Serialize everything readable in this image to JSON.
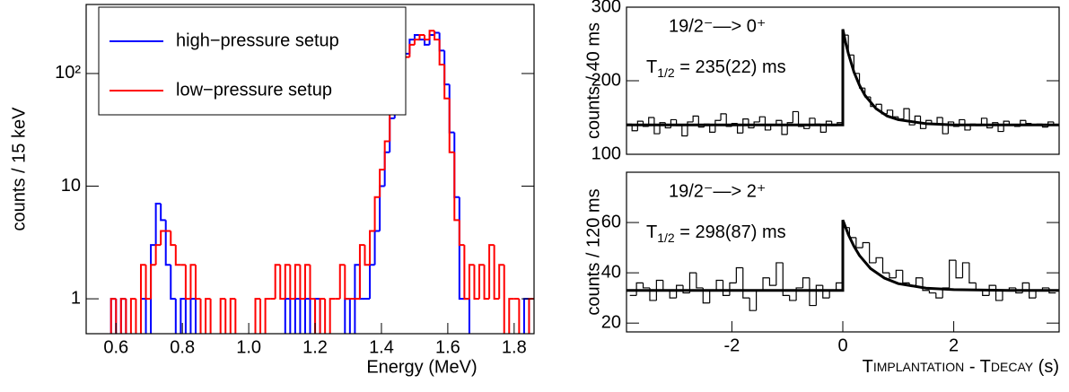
{
  "chart_data": [
    {
      "type": "histogram",
      "xlabel": "Energy (MeV)",
      "ylabel": "counts / 15 keV",
      "log_y": true,
      "xlim": [
        0.51,
        1.86
      ],
      "ylim": [
        0.49,
        410
      ],
      "xticks": [
        0.6,
        0.8,
        {
          "value": 1.0,
          "label": "1.0"
        },
        1.2,
        1.4,
        1.6,
        1.8
      ],
      "yticks": [
        1,
        10,
        {
          "value": 100,
          "label": "10²"
        }
      ],
      "legend": "top-left",
      "bins": [
        0.57,
        0.585,
        0.6,
        0.615,
        0.63,
        0.645,
        0.66,
        0.675,
        0.69,
        0.705,
        0.72,
        0.735,
        0.75,
        0.765,
        0.78,
        0.795,
        0.81,
        0.825,
        0.84,
        0.855,
        0.87,
        0.885,
        0.9,
        0.915,
        0.93,
        0.945,
        0.96,
        0.975,
        0.99,
        1.005,
        1.02,
        1.035,
        1.05,
        1.065,
        1.08,
        1.095,
        1.11,
        1.125,
        1.14,
        1.155,
        1.17,
        1.185,
        1.2,
        1.215,
        1.23,
        1.245,
        1.26,
        1.275,
        1.29,
        1.305,
        1.32,
        1.335,
        1.35,
        1.365,
        1.38,
        1.395,
        1.41,
        1.425,
        1.44,
        1.455,
        1.47,
        1.485,
        1.5,
        1.515,
        1.53,
        1.545,
        1.56,
        1.575,
        1.59,
        1.605,
        1.62,
        1.635,
        1.65,
        1.665,
        1.68,
        1.695,
        1.71,
        1.725,
        1.74,
        1.755,
        1.77,
        1.785,
        1.8,
        1.815,
        1.83,
        1.845,
        1.86
      ],
      "series": [
        {
          "name": "high−pressure setup",
          "color": "#0000ff",
          "values": [
            0,
            1,
            0,
            1,
            0,
            0,
            0,
            1,
            0,
            3,
            7,
            5,
            2,
            1,
            0,
            1,
            0,
            1,
            0,
            0,
            0,
            0,
            0,
            0,
            0,
            0,
            0,
            0,
            0,
            0,
            0,
            0,
            0,
            0,
            0,
            0,
            1,
            0,
            1,
            0,
            1,
            0,
            1,
            0,
            0,
            0,
            0,
            0,
            1,
            0,
            2,
            1,
            1,
            2,
            4,
            10,
            20,
            40,
            60,
            80,
            150,
            200,
            220,
            200,
            180,
            220,
            230,
            160,
            80,
            30,
            8,
            1,
            1,
            0,
            0,
            0,
            0,
            0,
            0,
            0,
            0,
            0,
            0,
            0,
            1,
            0
          ]
        },
        {
          "name": "low−pressure setup",
          "color": "#ff0000",
          "values": [
            0,
            1,
            0,
            1,
            0,
            1,
            0,
            2,
            1,
            2,
            3,
            4,
            4,
            3,
            2,
            2,
            1,
            2,
            1,
            0,
            1,
            0,
            0,
            1,
            0,
            1,
            0,
            0,
            0,
            0,
            1,
            0,
            1,
            1,
            2,
            1,
            2,
            1,
            2,
            1,
            2,
            1,
            0,
            1,
            0,
            1,
            1,
            2,
            1,
            1,
            1,
            3,
            2,
            4,
            8,
            14,
            25,
            50,
            70,
            100,
            140,
            180,
            200,
            220,
            200,
            240,
            200,
            120,
            60,
            20,
            5,
            3,
            1,
            2,
            1,
            2,
            1,
            3,
            1,
            2,
            0,
            1,
            1,
            0,
            0,
            1
          ]
        }
      ]
    },
    {
      "type": "histogram",
      "ylabel": "counts / 40 ms",
      "log_y": false,
      "xlim": [
        -3.9,
        3.9
      ],
      "ylim": [
        100,
        300
      ],
      "yticks": [
        100,
        200,
        300
      ],
      "bins": [
        -3.9,
        -3.8,
        -3.7,
        -3.6,
        -3.5,
        -3.4,
        -3.3,
        -3.2,
        -3.1,
        -3,
        -2.9,
        -2.8,
        -2.7,
        -2.6,
        -2.5,
        -2.4,
        -2.3,
        -2.2,
        -2.1,
        -2,
        -1.9,
        -1.8,
        -1.7,
        -1.6,
        -1.5,
        -1.4,
        -1.3,
        -1.2,
        -1.1,
        -1,
        -0.9,
        -0.8,
        -0.7,
        -0.6,
        -0.5,
        -0.4,
        -0.3,
        -0.2,
        -0.1,
        0,
        0.1,
        0.2,
        0.3,
        0.4,
        0.5,
        0.6,
        0.7,
        0.8,
        0.9,
        1,
        1.1,
        1.2,
        1.3,
        1.4,
        1.5,
        1.6,
        1.7,
        1.8,
        1.9,
        2,
        2.1,
        2.2,
        2.3,
        2.4,
        2.5,
        2.6,
        2.7,
        2.8,
        2.9,
        3,
        3.1,
        3.2,
        3.3,
        3.4,
        3.5,
        3.6,
        3.7,
        3.8,
        3.9
      ],
      "series": [
        {
          "color": "#000000",
          "values": [
            141,
            132,
            145,
            138,
            150,
            128,
            143,
            136,
            147,
            139,
            125,
            144,
            152,
            137,
            141,
            130,
            146,
            155,
            138,
            142,
            129,
            148,
            136,
            144,
            151,
            133,
            140,
            146,
            127,
            143,
            158,
            138,
            135,
            149,
            141,
            130,
            145,
            139,
            143,
            262,
            235,
            210,
            190,
            178,
            165,
            168,
            155,
            160,
            151,
            148,
            162,
            140,
            152,
            135,
            146,
            141,
            150,
            128,
            144,
            138,
            147,
            133,
            141,
            139,
            149,
            136,
            143,
            131,
            145,
            140,
            138,
            146,
            142,
            140,
            141,
            137,
            144,
            140
          ]
        }
      ],
      "fit": {
        "color": "#000000",
        "x": [
          -3.9,
          0,
          0,
          0.05,
          0.1,
          0.2,
          0.3,
          0.4,
          0.6,
          0.8,
          1.0,
          1.5,
          2,
          3,
          3.9
        ],
        "values": [
          140,
          140,
          270,
          252,
          237,
          212,
          194,
          180,
          162,
          152,
          147,
          141.6,
          140,
          140,
          140
        ]
      },
      "annotations": {
        "transition": "19/2⁻—> 0⁺",
        "symbol": "T",
        "subscript": "1/2",
        "text": " = 235(22) ms"
      }
    },
    {
      "type": "histogram",
      "ylabel": "counts / 120 ms",
      "log_y": false,
      "xlabel": [
        "T",
        "IMPLANTATION",
        "  - T",
        "DECAY",
        " (s)"
      ],
      "xlim": [
        -3.9,
        3.9
      ],
      "ylim": [
        16.5,
        80
      ],
      "xticks": [
        -2,
        0,
        2
      ],
      "yticks": [
        20,
        40,
        60
      ],
      "bins": [
        -3.84,
        -3.72,
        -3.6,
        -3.48,
        -3.36,
        -3.24,
        -3.12,
        -3,
        -2.88,
        -2.76,
        -2.64,
        -2.52,
        -2.4,
        -2.28,
        -2.16,
        -2.04,
        -1.92,
        -1.8,
        -1.68,
        -1.56,
        -1.44,
        -1.32,
        -1.2,
        -1.08,
        -0.96,
        -0.84,
        -0.72,
        -0.6,
        -0.48,
        -0.36,
        -0.24,
        -0.12,
        0,
        0.12,
        0.24,
        0.36,
        0.48,
        0.6,
        0.72,
        0.84,
        0.96,
        1.08,
        1.2,
        1.32,
        1.44,
        1.56,
        1.68,
        1.8,
        1.92,
        2.04,
        2.16,
        2.28,
        2.4,
        2.52,
        2.64,
        2.76,
        2.88,
        3,
        3.12,
        3.24,
        3.36,
        3.48,
        3.6,
        3.72,
        3.84
      ],
      "series": [
        {
          "color": "#000000",
          "values": [
            31,
            36,
            34,
            29,
            37,
            33,
            30,
            35,
            32,
            40,
            34,
            28,
            33,
            37,
            31,
            36,
            42,
            30,
            25,
            33,
            38,
            35,
            44,
            31,
            29,
            34,
            38,
            27,
            35,
            30,
            33,
            36,
            58,
            54,
            50,
            52,
            44,
            46,
            40,
            38,
            41,
            36,
            35,
            38,
            33,
            32,
            30,
            34,
            45,
            38,
            44,
            36,
            33,
            31,
            35,
            29,
            33,
            34,
            32,
            36,
            30,
            33,
            34,
            32
          ]
        }
      ],
      "fit": {
        "color": "#000000",
        "x": [
          -3.9,
          0,
          0,
          0.1,
          0.2,
          0.3,
          0.5,
          0.75,
          1.0,
          1.5,
          2,
          3,
          3.9
        ],
        "values": [
          33,
          33,
          61,
          55.2,
          50.6,
          46.9,
          41.7,
          37.9,
          35.7,
          33.9,
          33.3,
          33,
          33
        ]
      },
      "annotations": {
        "transition": "19/2⁻—> 2⁺",
        "symbol": "T",
        "subscript": "1/2",
        "text": " = 298(87) ms"
      }
    }
  ]
}
